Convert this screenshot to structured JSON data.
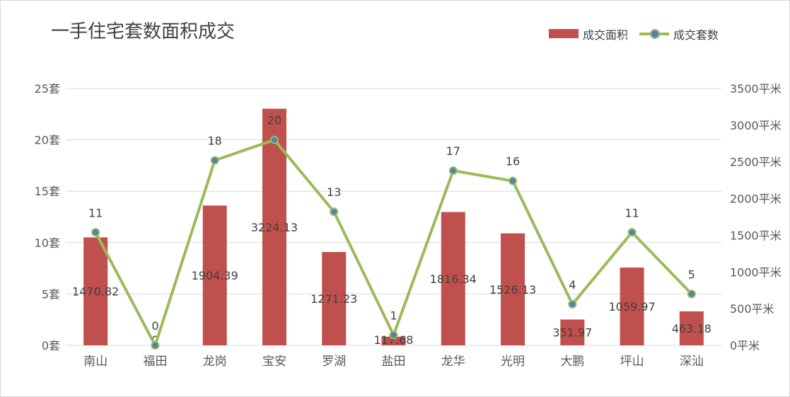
{
  "chart_data": {
    "type": "bar",
    "title": "一手住宅套数面积成交",
    "categories": [
      "南山",
      "福田",
      "龙岗",
      "宝安",
      "罗湖",
      "盐田",
      "龙华",
      "光明",
      "大鹏",
      "坪山",
      "深汕"
    ],
    "series": [
      {
        "name": "成交面积",
        "type": "bar",
        "axis": "right",
        "color": "#c0504d",
        "values": [
          1470.82,
          0,
          1904.39,
          3224.13,
          1271.23,
          117.68,
          1816.34,
          1526.13,
          351.97,
          1059.97,
          463.18
        ],
        "labels": [
          "1470.82",
          "0",
          "1904.39",
          "3224.13",
          "1271.23",
          "117.68",
          "1816.34",
          "1526.13",
          "351.97",
          "1059.97",
          "463.18"
        ]
      },
      {
        "name": "成交套数",
        "type": "line",
        "axis": "left",
        "color": "#9bbb59",
        "marker_color": "#4f81bd",
        "values": [
          11,
          0,
          18,
          20,
          13,
          1,
          17,
          16,
          4,
          11,
          5
        ],
        "labels": [
          "11",
          "0",
          "18",
          "20",
          "13",
          "1",
          "17",
          "16",
          "4",
          "11",
          "5"
        ]
      }
    ],
    "left_axis": {
      "range": [
        0,
        25
      ],
      "ticks": [
        0,
        5,
        10,
        15,
        20,
        25
      ],
      "tick_labels": [
        "0套",
        "5套",
        "10套",
        "15套",
        "20套",
        "25套"
      ]
    },
    "right_axis": {
      "range": [
        0,
        3500
      ],
      "ticks": [
        0,
        500,
        1000,
        1500,
        2000,
        2500,
        3000,
        3500
      ],
      "tick_labels": [
        "0平米",
        "500平米",
        "1000平米",
        "1500平米",
        "2000平米",
        "2500平米",
        "3000平米",
        "3500平米"
      ]
    },
    "grid": true,
    "legend_position": "top-right",
    "colors": {
      "gridline": "#d9d9d9",
      "axis_text": "#595959",
      "label_text": "#404040"
    }
  }
}
